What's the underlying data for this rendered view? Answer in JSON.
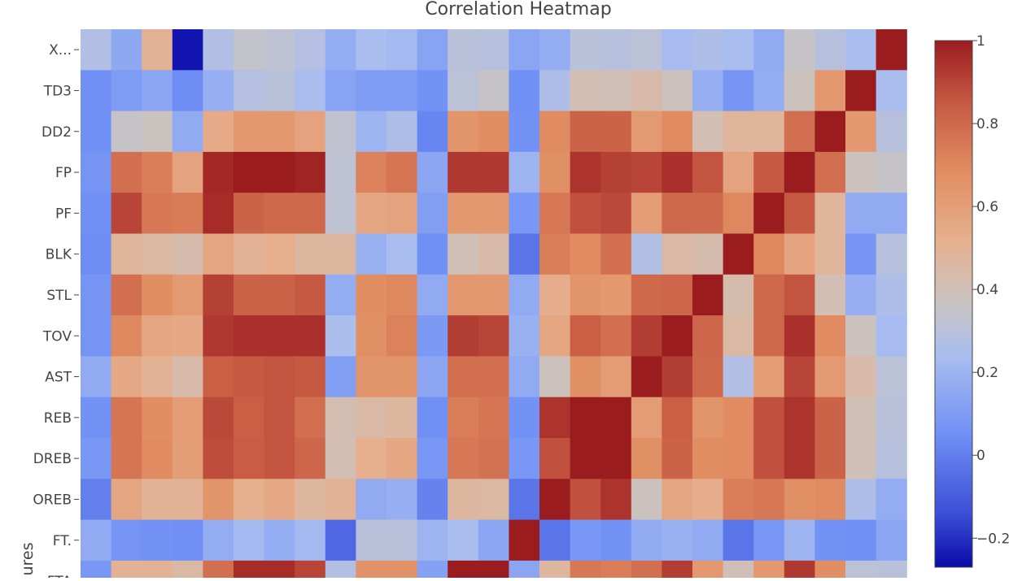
{
  "chart_data": {
    "type": "heatmap",
    "title": "Correlation Heatmap",
    "ylabel": "ures",
    "row_labels": [
      "X...",
      "TD3",
      "DD2",
      "FP",
      "PF",
      "BLK",
      "STL",
      "TOV",
      "AST",
      "REB",
      "DREB",
      "OREB",
      "FT.",
      "FTA"
    ],
    "column_count": 27,
    "colorscale": [
      [
        0.0,
        "#0a0aa8"
      ],
      [
        0.1,
        "#3b4ed6"
      ],
      [
        0.25,
        "#6f8ff5"
      ],
      [
        0.4,
        "#a9bdf0"
      ],
      [
        0.5,
        "#c9c4c2"
      ],
      [
        0.62,
        "#e6b08f"
      ],
      [
        0.75,
        "#e18d62"
      ],
      [
        0.88,
        "#c75a43"
      ],
      [
        1.0,
        "#9b1c1f"
      ]
    ],
    "zmin": -0.27,
    "zmax": 1.0,
    "colorbar": {
      "ticks": [
        1,
        0.8,
        0.6,
        0.4,
        0.2,
        0,
        -0.2
      ],
      "tick_labels": [
        "1",
        "0.8",
        "0.6",
        "0.4",
        "0.2",
        "0",
        "−0.2"
      ]
    },
    "values": [
      [
        0.27,
        0.15,
        0.5,
        -0.25,
        0.27,
        0.34,
        0.32,
        0.28,
        0.17,
        0.24,
        0.22,
        0.13,
        0.3,
        0.29,
        0.14,
        0.17,
        0.3,
        0.29,
        0.31,
        0.23,
        0.26,
        0.24,
        0.16,
        0.35,
        0.29,
        0.24,
        1.0
      ],
      [
        0.05,
        0.1,
        0.14,
        0.04,
        0.18,
        0.28,
        0.3,
        0.24,
        0.13,
        0.1,
        0.1,
        0.06,
        0.31,
        0.35,
        0.05,
        0.26,
        0.41,
        0.4,
        0.44,
        0.38,
        0.18,
        0.07,
        0.17,
        0.38,
        0.63,
        1.0,
        0.24
      ],
      [
        0.05,
        0.35,
        0.37,
        0.16,
        0.54,
        0.63,
        0.63,
        0.58,
        0.33,
        0.2,
        0.26,
        0.02,
        0.65,
        0.68,
        0.06,
        0.69,
        0.82,
        0.82,
        0.62,
        0.69,
        0.41,
        0.48,
        0.48,
        0.78,
        1.0,
        0.63,
        0.29
      ],
      [
        0.07,
        0.78,
        0.73,
        0.58,
        0.97,
        1.0,
        1.0,
        0.98,
        0.32,
        0.72,
        0.76,
        0.14,
        0.93,
        0.93,
        0.2,
        0.67,
        0.94,
        0.91,
        0.9,
        0.95,
        0.86,
        0.58,
        0.85,
        1.0,
        0.78,
        0.38,
        0.35
      ],
      [
        0.05,
        0.9,
        0.75,
        0.74,
        0.96,
        0.82,
        0.8,
        0.8,
        0.32,
        0.56,
        0.58,
        0.11,
        0.63,
        0.63,
        0.08,
        0.75,
        0.87,
        0.89,
        0.61,
        0.8,
        0.8,
        0.7,
        1.0,
        0.85,
        0.48,
        0.16,
        0.16
      ],
      [
        0.04,
        0.48,
        0.46,
        0.43,
        0.57,
        0.5,
        0.52,
        0.47,
        0.47,
        0.19,
        0.24,
        0.05,
        0.4,
        0.44,
        -0.03,
        0.73,
        0.69,
        0.78,
        0.27,
        0.45,
        0.43,
        1.0,
        0.7,
        0.58,
        0.48,
        0.07,
        0.29
      ],
      [
        0.07,
        0.78,
        0.68,
        0.62,
        0.91,
        0.82,
        0.82,
        0.85,
        0.17,
        0.68,
        0.7,
        0.16,
        0.63,
        0.63,
        0.16,
        0.53,
        0.65,
        0.63,
        0.8,
        0.81,
        1.0,
        0.43,
        0.8,
        0.86,
        0.41,
        0.18,
        0.26
      ],
      [
        0.07,
        0.7,
        0.57,
        0.55,
        0.93,
        0.95,
        0.95,
        0.95,
        0.25,
        0.67,
        0.72,
        0.09,
        0.92,
        0.9,
        0.19,
        0.57,
        0.83,
        0.78,
        0.92,
        1.0,
        0.81,
        0.45,
        0.8,
        0.95,
        0.69,
        0.38,
        0.23
      ],
      [
        0.16,
        0.55,
        0.5,
        0.44,
        0.83,
        0.85,
        0.86,
        0.85,
        0.11,
        0.65,
        0.65,
        0.14,
        0.78,
        0.78,
        0.16,
        0.38,
        0.67,
        0.61,
        1.0,
        0.92,
        0.8,
        0.27,
        0.61,
        0.9,
        0.62,
        0.44,
        0.31
      ],
      [
        0.06,
        0.76,
        0.68,
        0.61,
        0.89,
        0.83,
        0.86,
        0.78,
        0.42,
        0.45,
        0.47,
        0.05,
        0.73,
        0.76,
        0.06,
        0.94,
        1.0,
        1.0,
        0.61,
        0.83,
        0.65,
        0.69,
        0.87,
        0.94,
        0.82,
        0.4,
        0.3
      ],
      [
        0.08,
        0.76,
        0.69,
        0.6,
        0.88,
        0.84,
        0.86,
        0.81,
        0.41,
        0.52,
        0.56,
        0.08,
        0.75,
        0.77,
        0.08,
        0.87,
        1.0,
        1.0,
        0.67,
        0.82,
        0.68,
        0.69,
        0.87,
        0.94,
        0.82,
        0.4,
        0.29
      ],
      [
        0.0,
        0.57,
        0.5,
        0.5,
        0.65,
        0.52,
        0.55,
        0.47,
        0.5,
        0.16,
        0.18,
        0.01,
        0.47,
        0.46,
        -0.03,
        1.0,
        0.87,
        0.94,
        0.38,
        0.57,
        0.53,
        0.73,
        0.75,
        0.67,
        0.69,
        0.26,
        0.17
      ],
      [
        0.16,
        0.07,
        0.06,
        0.05,
        0.17,
        0.22,
        0.17,
        0.22,
        -0.07,
        0.3,
        0.3,
        0.2,
        0.24,
        0.14,
        1.0,
        -0.03,
        0.08,
        0.06,
        0.16,
        0.19,
        0.16,
        -0.03,
        0.08,
        0.2,
        0.06,
        0.05,
        0.14
      ],
      [
        0.08,
        0.5,
        0.5,
        0.45,
        0.78,
        0.96,
        0.96,
        0.9,
        0.27,
        0.66,
        0.66,
        0.12,
        1.0,
        1.0,
        0.14,
        0.47,
        0.75,
        0.73,
        0.78,
        0.92,
        0.63,
        0.4,
        0.63,
        0.93,
        0.68,
        0.31,
        0.3
      ]
    ]
  }
}
